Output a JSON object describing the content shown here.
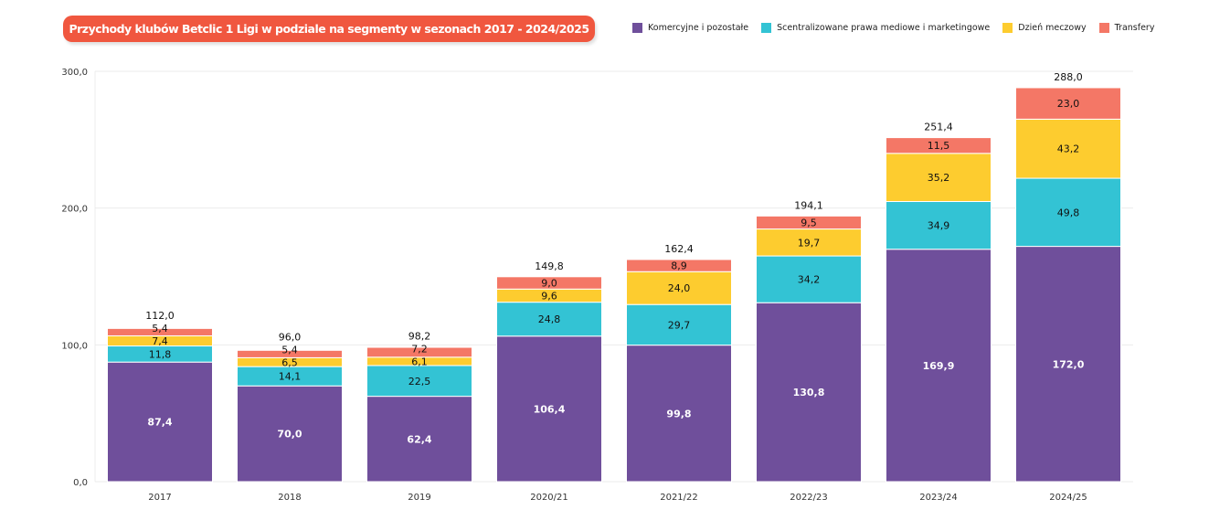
{
  "chart_data": {
    "type": "bar",
    "stacked": true,
    "title": "Przychody klubów Betclic 1 Ligi w podziale na segmenty w sezonach 2017 - 2024/2025 (mln zł)",
    "xlabel": "",
    "ylabel": "",
    "ylim": [
      0,
      300
    ],
    "yticks": [
      "0,0",
      "100,0",
      "200,0",
      "300,0"
    ],
    "grid": true,
    "legend": "top-right",
    "categories": [
      "2017",
      "2018",
      "2019",
      "2020/21",
      "2021/22",
      "2022/23",
      "2023/24",
      "2024/25"
    ],
    "series": [
      {
        "name": "Komercyjne i pozostałe",
        "color": "#6f4f9b",
        "values": [
          87.4,
          70.0,
          62.4,
          106.4,
          99.8,
          130.8,
          169.9,
          172.0
        ]
      },
      {
        "name": "Scentralizowane prawa mediowe i marketingowe",
        "color": "#33c3d4",
        "values": [
          11.8,
          14.1,
          22.5,
          24.8,
          29.7,
          34.2,
          34.9,
          49.8
        ]
      },
      {
        "name": "Dzień meczowy",
        "color": "#fdcc2f",
        "values": [
          7.4,
          6.5,
          6.1,
          9.6,
          24.0,
          19.7,
          35.2,
          43.2
        ]
      },
      {
        "name": "Transfery",
        "color": "#f47766",
        "values": [
          5.4,
          5.4,
          7.2,
          9.0,
          8.9,
          9.5,
          11.5,
          23.0
        ]
      }
    ],
    "totals": [
      112.0,
      96.0,
      98.2,
      149.8,
      162.4,
      194.1,
      251.4,
      288.0
    ]
  }
}
